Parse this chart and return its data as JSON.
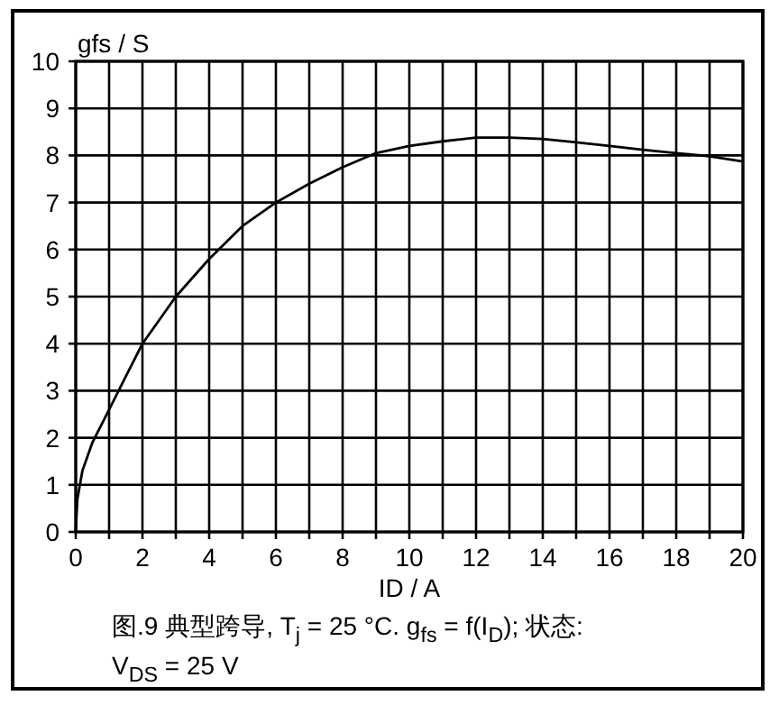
{
  "chart_data": {
    "type": "line",
    "xlabel": "ID / A",
    "ylabel": "gfs / S",
    "annotations": [
      "图.9 典型跨导, T$_{j}$ = 25 °C. g$_{fs}$ = f(I$_{D}$); 状态: V$_{DS}$ = 25 V"
    ],
    "x": [
      0,
      0.05,
      0.2,
      0.5,
      1,
      1.5,
      2,
      3,
      4,
      5,
      6,
      7,
      8,
      9,
      10,
      11,
      12,
      13,
      14,
      15,
      16,
      17,
      18,
      19,
      20
    ],
    "series": [
      {
        "color": "#000000",
        "values": [
          0,
          0.7,
          1.3,
          1.9,
          2.6,
          3.3,
          4,
          5,
          5.8,
          6.5,
          7,
          7.4,
          7.75,
          8.05,
          8.2,
          8.3,
          8.38,
          8.38,
          8.35,
          8.28,
          8.2,
          8.12,
          8.05,
          7.98,
          7.87
        ]
      }
    ],
    "xlim": [
      0,
      20
    ],
    "ylim": [
      0,
      10
    ],
    "xticks": [
      0,
      {
        "value": 1,
        "label": null
      },
      2,
      {
        "value": 3,
        "label": null
      },
      4,
      {
        "value": 5,
        "label": null
      },
      6,
      {
        "value": 7,
        "label": null
      },
      8,
      {
        "value": 9,
        "label": null
      },
      10,
      {
        "value": 11,
        "label": null
      },
      12,
      {
        "value": 13,
        "label": null
      },
      14,
      {
        "value": 15,
        "label": null
      },
      16,
      {
        "value": 17,
        "label": null
      },
      18,
      {
        "value": 19,
        "label": null
      },
      20
    ],
    "yticks": [
      0,
      1,
      2,
      3,
      4,
      5,
      6,
      7,
      8,
      9,
      10
    ],
    "grid": true,
    "line_style": "solid",
    "marker": "none"
  }
}
